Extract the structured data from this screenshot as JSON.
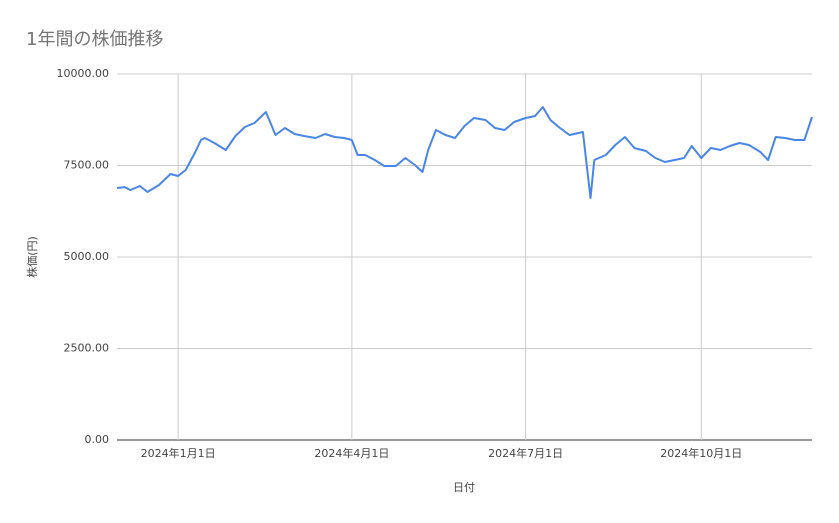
{
  "chart_data": {
    "type": "line",
    "title": "1年間の株価推移",
    "xlabel": "日付",
    "ylabel": "株価(円)",
    "x": [
      "2023-11-30",
      "2023-12-04",
      "2023-12-07",
      "2023-12-12",
      "2023-12-16",
      "2023-12-22",
      "2023-12-28",
      "2024-01-01",
      "2024-01-05",
      "2024-01-10",
      "2024-01-13",
      "2024-01-15",
      "2024-01-20",
      "2024-01-26",
      "2024-01-31",
      "2024-02-05",
      "2024-02-10",
      "2024-02-16",
      "2024-02-21",
      "2024-02-26",
      "2024-03-02",
      "2024-03-07",
      "2024-03-13",
      "2024-03-18",
      "2024-03-23",
      "2024-03-28",
      "2024-04-01",
      "2024-04-04",
      "2024-04-08",
      "2024-04-13",
      "2024-04-18",
      "2024-04-24",
      "2024-04-29",
      "2024-05-04",
      "2024-05-08",
      "2024-05-11",
      "2024-05-15",
      "2024-05-20",
      "2024-05-25",
      "2024-05-30",
      "2024-06-04",
      "2024-06-10",
      "2024-06-15",
      "2024-06-20",
      "2024-06-25",
      "2024-07-01",
      "2024-07-06",
      "2024-07-10",
      "2024-07-14",
      "2024-07-19",
      "2024-07-24",
      "2024-07-31",
      "2024-08-04",
      "2024-08-06",
      "2024-08-12",
      "2024-08-17",
      "2024-08-22",
      "2024-08-27",
      "2024-09-02",
      "2024-09-07",
      "2024-09-12",
      "2024-09-17",
      "2024-09-22",
      "2024-09-26",
      "2024-10-01",
      "2024-10-06",
      "2024-10-11",
      "2024-10-16",
      "2024-10-21",
      "2024-10-26",
      "2024-11-01",
      "2024-11-05",
      "2024-11-09",
      "2024-11-14",
      "2024-11-19",
      "2024-11-24",
      "2024-11-28"
    ],
    "series": [
      {
        "name": "株価",
        "color": "#4a86e8",
        "values": [
          6885,
          6910,
          6830,
          6940,
          6776,
          6967,
          7268,
          7213,
          7377,
          7869,
          8197,
          8251,
          8115,
          7923,
          8306,
          8552,
          8661,
          8962,
          8333,
          8525,
          8361,
          8306,
          8251,
          8361,
          8279,
          8251,
          8197,
          7787,
          7787,
          7650,
          7486,
          7486,
          7705,
          7514,
          7322,
          7923,
          8470,
          8333,
          8251,
          8579,
          8798,
          8743,
          8525,
          8470,
          8689,
          8798,
          8852,
          9098,
          8743,
          8525,
          8333,
          8415,
          6612,
          7650,
          7787,
          8060,
          8279,
          7978,
          7896,
          7705,
          7596,
          7650,
          7705,
          8033,
          7705,
          7978,
          7923,
          8033,
          8115,
          8060,
          7869,
          7650,
          8279,
          8251,
          8197,
          8197,
          8825
        ]
      }
    ],
    "xlim": [
      "2023-11-30",
      "2024-11-28"
    ],
    "xticks": [
      {
        "value": "2024-01-01",
        "label": "2024年1月1日"
      },
      {
        "value": "2024-04-01",
        "label": "2024年4月1日"
      },
      {
        "value": "2024-07-01",
        "label": "2024年7月1日"
      },
      {
        "value": "2024-10-01",
        "label": "2024年10月1日"
      }
    ],
    "ylim": [
      0,
      10000
    ],
    "yticks": [
      {
        "value": 0,
        "label": "0.00"
      },
      {
        "value": 2500,
        "label": "2500.00"
      },
      {
        "value": 5000,
        "label": "5000.00"
      },
      {
        "value": 7500,
        "label": "7500.00"
      },
      {
        "value": 10000,
        "label": "10000.00"
      }
    ],
    "grid": true
  }
}
